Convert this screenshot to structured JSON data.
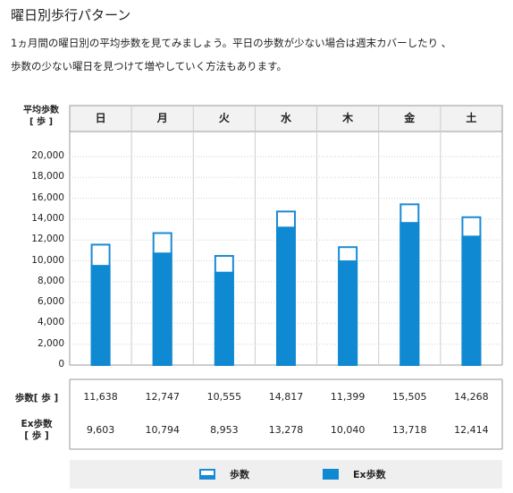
{
  "page": {
    "title": "曜日別歩行パターン",
    "desc_line1": "1ヵ月間の曜日別の平均歩数を見てみましょう。平日の歩数が少ない場合は週末カバーしたり 、",
    "desc_line2": "歩数の少ない曜日を見つけて増やしていく方法もあります。"
  },
  "chart_data": {
    "type": "bar",
    "y_axis_label_line1": "平均歩数",
    "y_axis_label_line2": "[ 歩 ]",
    "categories": [
      "日",
      "月",
      "火",
      "水",
      "木",
      "金",
      "土"
    ],
    "ylim": [
      0,
      20000
    ],
    "y_ticks": [
      "20,000",
      "18,000",
      "16,000",
      "14,000",
      "12,000",
      "10,000",
      "8,000",
      "6,000",
      "4,000",
      "2,000",
      "0"
    ],
    "series": [
      {
        "name": "歩数",
        "values": [
          11638,
          12747,
          10555,
          14817,
          11399,
          15505,
          14268
        ]
      },
      {
        "name": "Ex歩数",
        "values": [
          9603,
          10794,
          8953,
          13278,
          10040,
          13718,
          12414
        ]
      }
    ],
    "colors": {
      "steps_border": "#1a8ad4",
      "ex_fill": "#0f89d2"
    },
    "grid": true
  },
  "table": {
    "row1_label": "歩数[ 歩 ]",
    "row1_values": [
      "11,638",
      "12,747",
      "10,555",
      "14,817",
      "11,399",
      "15,505",
      "14,268"
    ],
    "row2_label_line1": "Ex歩数",
    "row2_label_line2": "[ 歩 ]",
    "row2_values": [
      "9,603",
      "10,794",
      "8,953",
      "13,278",
      "10,040",
      "13,718",
      "12,414"
    ]
  },
  "legend": {
    "steps_label": "歩数",
    "ex_label": "Ex歩数"
  }
}
